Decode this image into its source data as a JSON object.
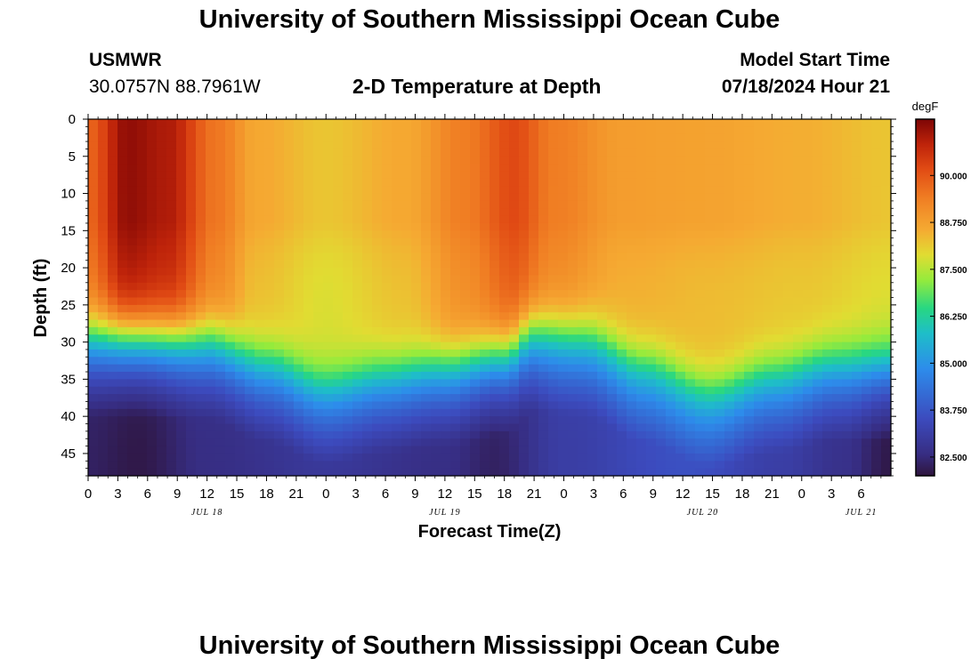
{
  "header": {
    "title": "University of Southern Mississippi Ocean Cube",
    "station": "USMWR",
    "coordinates": "30.0757N  88.7961W",
    "plot_title": "2-D Temperature at Depth",
    "model_label": "Model Start Time",
    "model_time": "07/18/2024 Hour 21"
  },
  "footer": {
    "title": "University of Southern Mississippi Ocean Cube"
  },
  "chart_data": {
    "type": "heatmap",
    "title": "2-D Temperature at Depth",
    "xlabel": "Forecast Time(Z)",
    "ylabel": "Depth (ft)",
    "x_range_hours": [
      0,
      81
    ],
    "y_range_ft": [
      0,
      48
    ],
    "x_tick_labels": [
      "0",
      "3",
      "6",
      "9",
      "12",
      "15",
      "18",
      "21",
      "0",
      "3",
      "6",
      "9",
      "12",
      "15",
      "18",
      "21",
      "0",
      "3",
      "6",
      "9",
      "12",
      "15",
      "18",
      "21",
      "0",
      "3",
      "6"
    ],
    "date_labels": [
      {
        "label": "JUL 18",
        "hour": 12
      },
      {
        "label": "JUL 19",
        "hour": 36
      },
      {
        "label": "JUL 20",
        "hour": 62
      },
      {
        "label": "JUL 21",
        "hour": 78
      }
    ],
    "y_tick_labels": [
      "0",
      "5",
      "10",
      "15",
      "20",
      "25",
      "30",
      "35",
      "40",
      "45"
    ],
    "colorbar": {
      "unit": "degF",
      "min": 82.0,
      "max": 91.5,
      "tick_labels": [
        "90.000",
        "88.750",
        "87.500",
        "86.250",
        "85.000",
        "83.750",
        "82.500"
      ]
    },
    "thermocline_depth_ft": [
      {
        "hour": 0,
        "depth": 26
      },
      {
        "hour": 12,
        "depth": 26.5
      },
      {
        "hour": 18,
        "depth": 29.5
      },
      {
        "hour": 24,
        "depth": 32.5
      },
      {
        "hour": 30,
        "depth": 31
      },
      {
        "hour": 36,
        "depth": 30
      },
      {
        "hour": 42,
        "depth": 28.5
      },
      {
        "hour": 45,
        "depth": 25.5
      },
      {
        "hour": 50,
        "depth": 26
      },
      {
        "hour": 56,
        "depth": 29.5
      },
      {
        "hour": 63,
        "depth": 33
      },
      {
        "hour": 69,
        "depth": 31
      },
      {
        "hour": 75,
        "depth": 29.5
      },
      {
        "hour": 81,
        "depth": 29.5
      }
    ],
    "surface_temperature_degF": [
      {
        "hour": 0,
        "value": 89.8
      },
      {
        "hour": 4,
        "value": 91.3
      },
      {
        "hour": 8,
        "value": 91.0
      },
      {
        "hour": 13,
        "value": 89.5
      },
      {
        "hour": 17,
        "value": 88.6
      },
      {
        "hour": 24,
        "value": 88.2
      },
      {
        "hour": 32,
        "value": 88.6
      },
      {
        "hour": 38,
        "value": 89.4
      },
      {
        "hour": 43,
        "value": 90.2
      },
      {
        "hour": 47,
        "value": 89.4
      },
      {
        "hour": 54,
        "value": 88.8
      },
      {
        "hour": 62,
        "value": 88.7
      },
      {
        "hour": 72,
        "value": 88.5
      },
      {
        "hour": 81,
        "value": 88.2
      }
    ],
    "deep_temperature_degF": [
      {
        "hour": 0,
        "value": 82.3
      },
      {
        "hour": 5,
        "value": 82.1
      },
      {
        "hour": 12,
        "value": 82.6
      },
      {
        "hour": 24,
        "value": 82.9
      },
      {
        "hour": 36,
        "value": 82.6
      },
      {
        "hour": 41,
        "value": 82.3
      },
      {
        "hour": 48,
        "value": 83.1
      },
      {
        "hour": 60,
        "value": 83.6
      },
      {
        "hour": 70,
        "value": 83.1
      },
      {
        "hour": 76,
        "value": 82.7
      },
      {
        "hour": 81,
        "value": 82.1
      }
    ]
  }
}
